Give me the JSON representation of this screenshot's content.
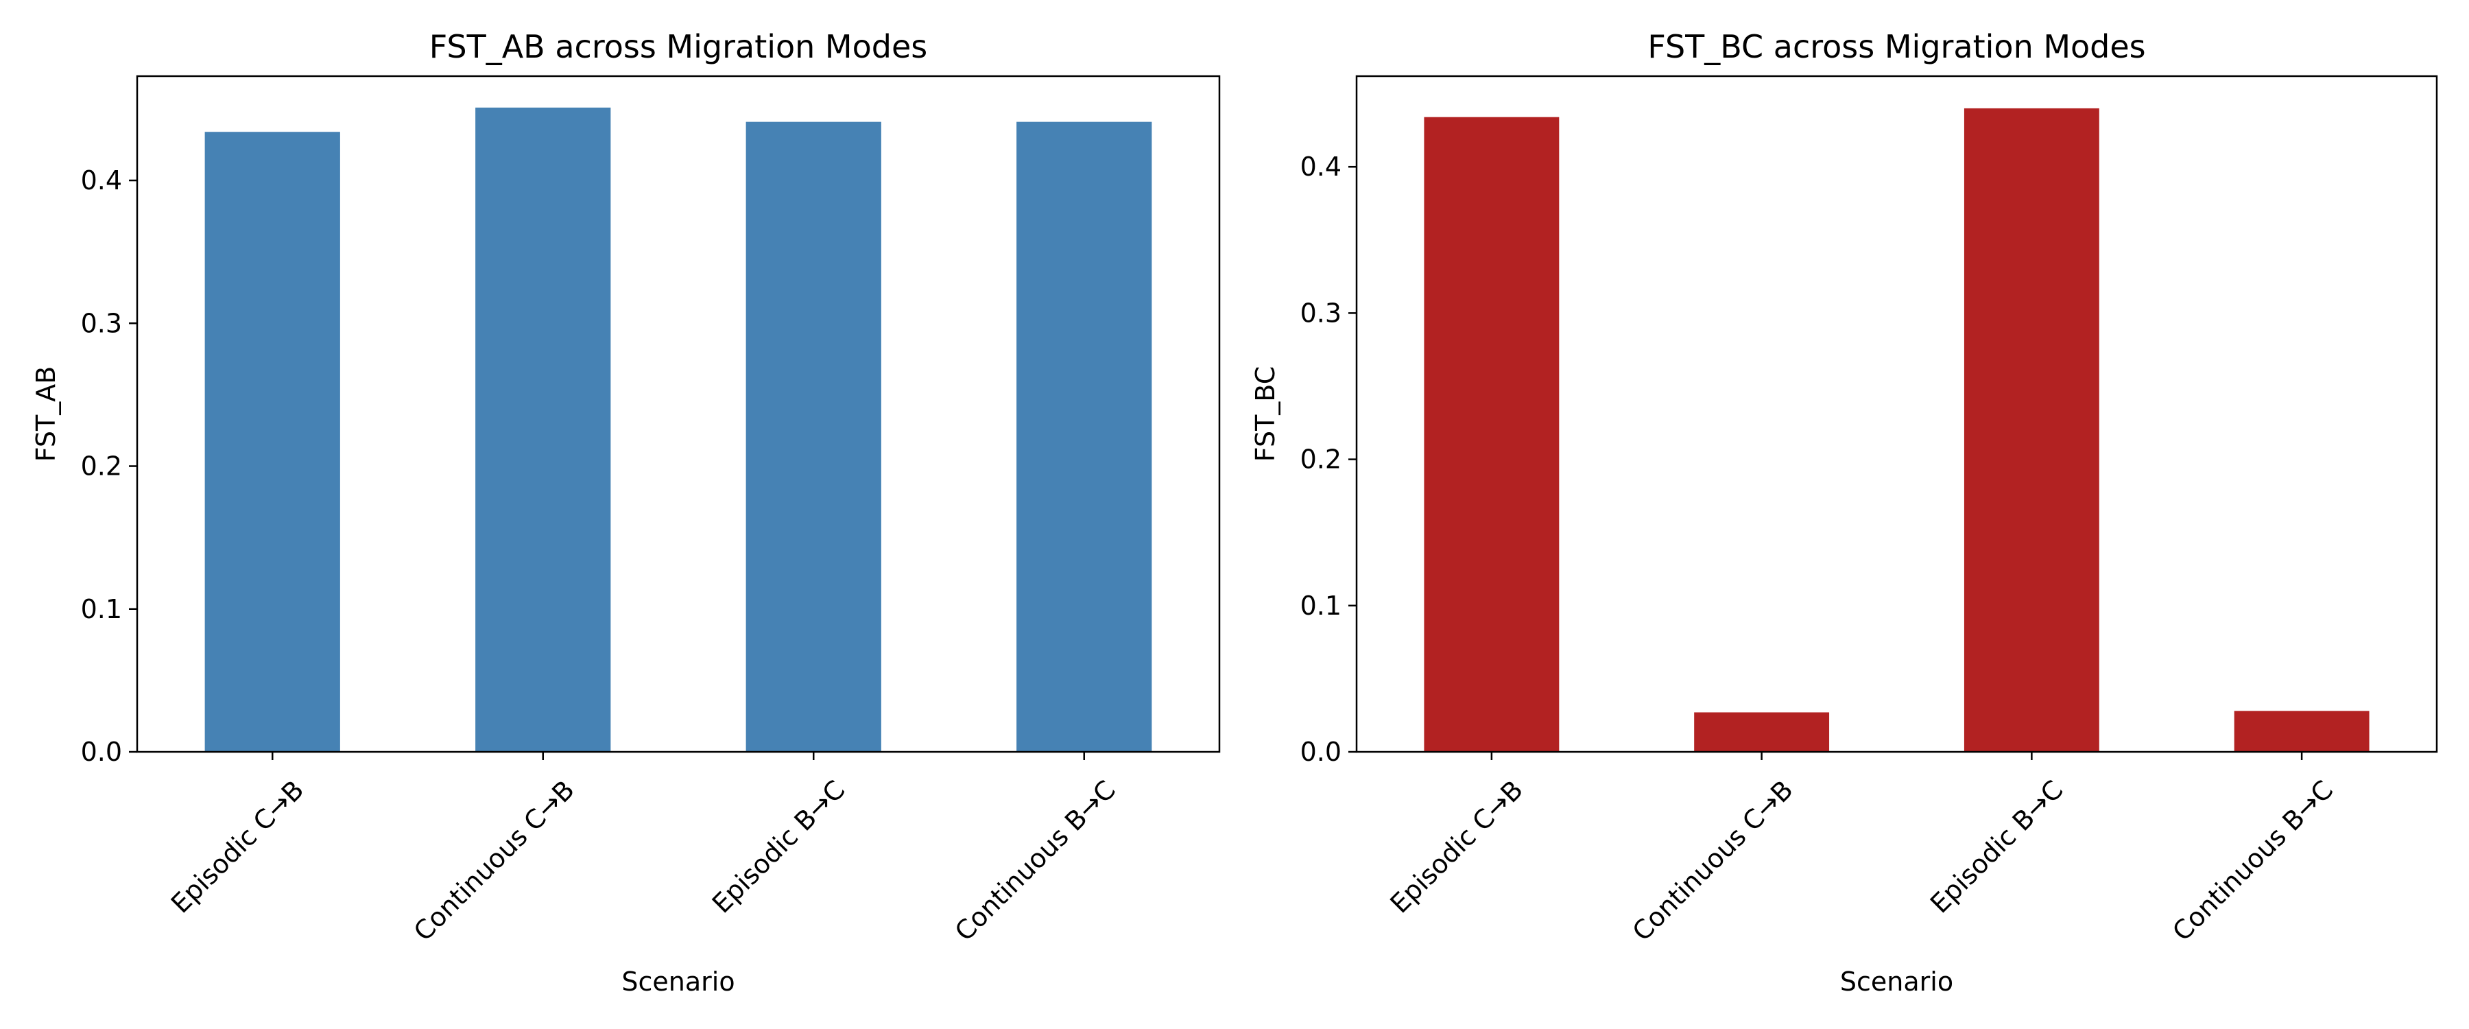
{
  "chart_data": [
    {
      "type": "bar",
      "title": "FST_AB across Migration Modes",
      "xlabel": "Scenario",
      "ylabel": "FST_AB",
      "categories": [
        "Episodic C→B",
        "Continuous C→B",
        "Episodic B→C",
        "Continuous B→C"
      ],
      "values": [
        0.434,
        0.451,
        0.441,
        0.441
      ],
      "ylim": [
        0,
        0.473
      ],
      "yticks": [
        "0.0",
        "0.1",
        "0.2",
        "0.3",
        "0.4"
      ],
      "color": "#4682b4",
      "grid": false
    },
    {
      "type": "bar",
      "title": "FST_BC across Migration Modes",
      "xlabel": "Scenario",
      "ylabel": "FST_BC",
      "categories": [
        "Episodic C→B",
        "Continuous C→B",
        "Episodic B→C",
        "Continuous B→C"
      ],
      "values": [
        0.434,
        0.027,
        0.44,
        0.028
      ],
      "ylim": [
        0,
        0.462
      ],
      "yticks": [
        "0.0",
        "0.1",
        "0.2",
        "0.3",
        "0.4"
      ],
      "color": "#b22222",
      "grid": false
    }
  ]
}
